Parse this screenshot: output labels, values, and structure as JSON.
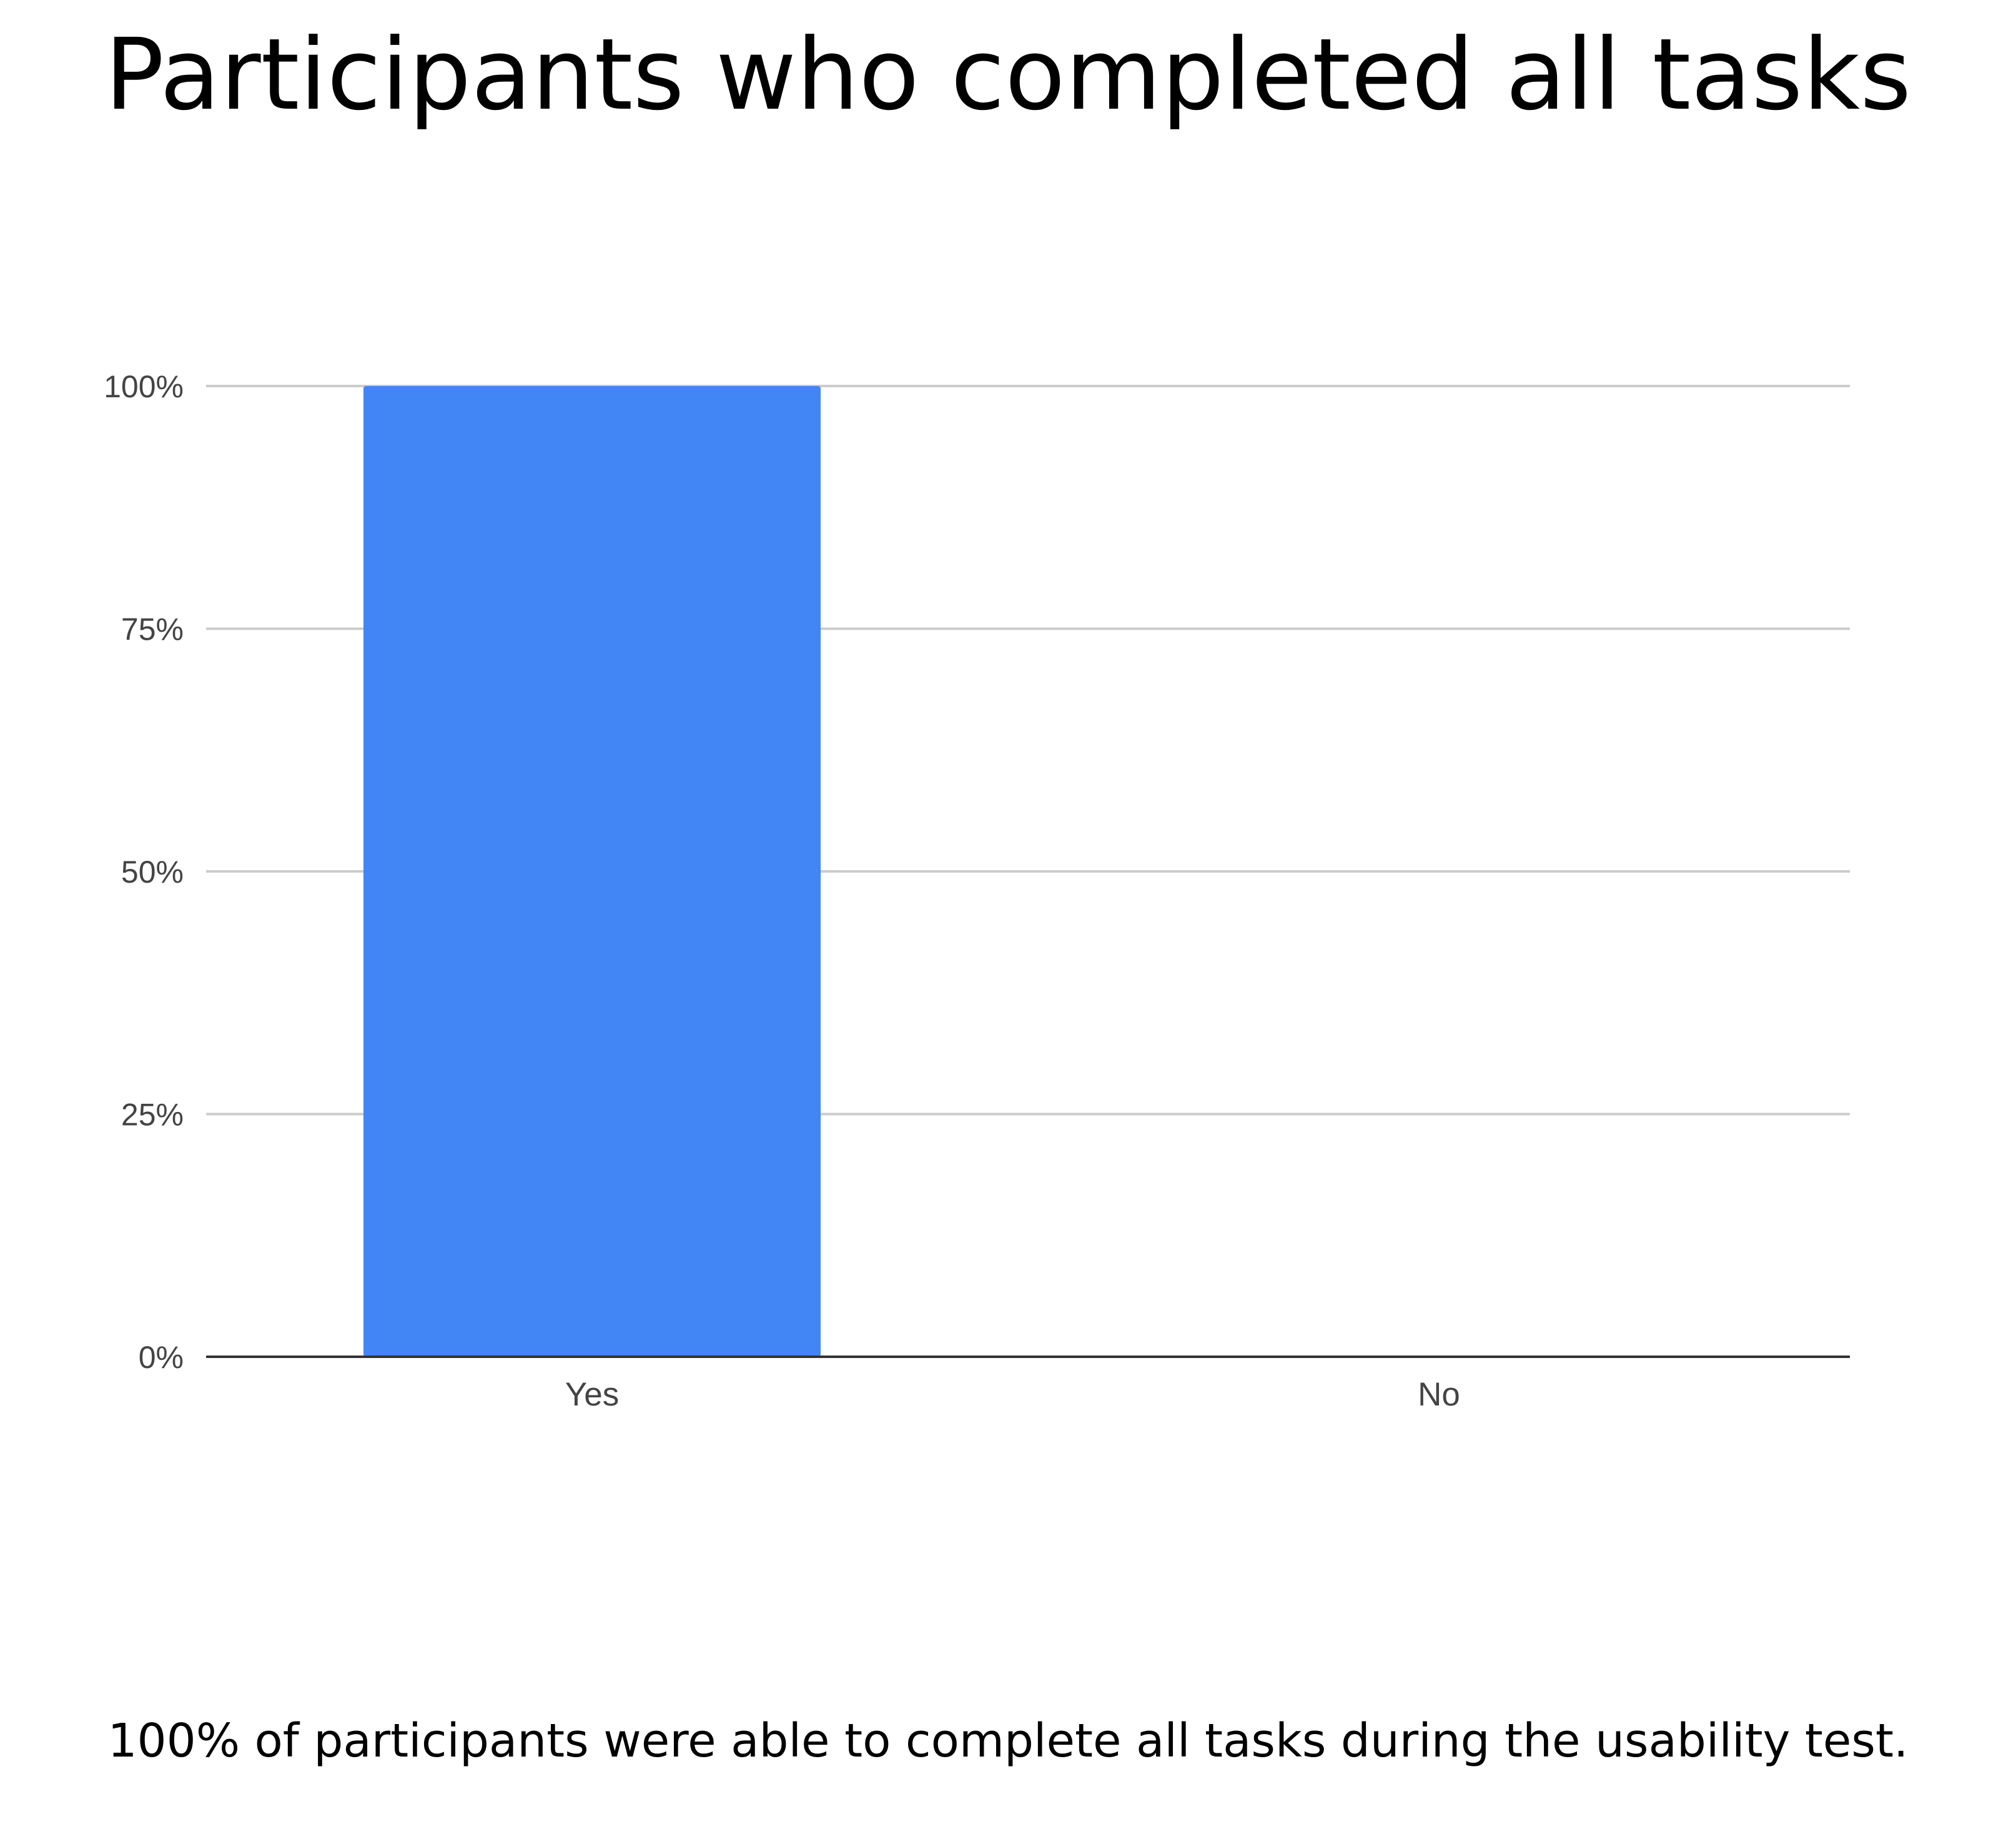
{
  "title": "Participants who completed all tasks",
  "caption": "100% of participants were able to complete all tasks during the usability test.",
  "colors": {
    "bar": "#4285F4",
    "gridline": "#CCCCCC",
    "baseline": "#333333",
    "tick_text": "#444444"
  },
  "chart_data": {
    "type": "bar",
    "categories": [
      "Yes",
      "No"
    ],
    "values": [
      100,
      0
    ],
    "ylim": [
      0,
      100
    ],
    "yticks": [
      0,
      25,
      50,
      75,
      100
    ],
    "ytick_labels": [
      "0%",
      "25%",
      "50%",
      "75%",
      "100%"
    ],
    "grid": true,
    "legend": "none"
  }
}
